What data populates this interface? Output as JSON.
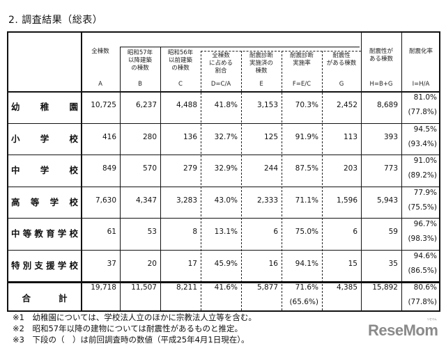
{
  "title": "2. 調査結果（総表）",
  "columns": [
    {
      "key": "A",
      "header": [
        "全棟数"
      ],
      "letter": "A"
    },
    {
      "key": "B",
      "header": [
        "昭和57年",
        "以降建築",
        "の棟数"
      ],
      "letter": "B"
    },
    {
      "key": "C",
      "header": [
        "昭和56年",
        "以前建築",
        "の棟数"
      ],
      "letter": "C"
    },
    {
      "key": "D",
      "header": [
        "全棟数",
        "に占める",
        "割合"
      ],
      "letter": "D=C/A"
    },
    {
      "key": "E",
      "header": [
        "耐震診断",
        "実施済の",
        "棟数"
      ],
      "letter": "E"
    },
    {
      "key": "F",
      "header": [
        "耐震診断",
        "実施率"
      ],
      "letter": "F=E/C"
    },
    {
      "key": "G",
      "header": [
        "耐震性",
        "がある棟数"
      ],
      "letter": "G"
    },
    {
      "key": "H",
      "header": [
        "耐震性が",
        "ある棟数"
      ],
      "letter": "H=B+G"
    },
    {
      "key": "I",
      "header": [
        "耐震化率"
      ],
      "letter": "I=H/A"
    }
  ],
  "rows": [
    {
      "label": [
        "幼",
        "稚",
        "園"
      ],
      "A": "10,725",
      "B": "6,237",
      "C": "4,488",
      "D": "41.8%",
      "E": "3,153",
      "F": "70.3%",
      "G": "2,452",
      "H": "8,689",
      "I": "81.0%",
      "I_prev": "(77.8%)"
    },
    {
      "label": [
        "小",
        "学",
        "校"
      ],
      "A": "416",
      "B": "280",
      "C": "136",
      "D": "32.7%",
      "E": "125",
      "F": "91.9%",
      "G": "113",
      "H": "393",
      "I": "94.5%",
      "I_prev": "(93.4%)"
    },
    {
      "label": [
        "中",
        "学",
        "校"
      ],
      "A": "849",
      "B": "570",
      "C": "279",
      "D": "32.9%",
      "E": "244",
      "F": "87.5%",
      "G": "203",
      "H": "773",
      "I": "91.0%",
      "I_prev": "(89.2%)"
    },
    {
      "label": [
        "高",
        "等",
        "学",
        "校"
      ],
      "A": "7,630",
      "B": "4,347",
      "C": "3,283",
      "D": "43.0%",
      "E": "2,333",
      "F": "71.1%",
      "G": "1,596",
      "H": "5,943",
      "I": "77.9%",
      "I_prev": "(75.5%)"
    },
    {
      "label": [
        "中",
        "等",
        "教",
        "育",
        "学",
        "校"
      ],
      "A": "61",
      "B": "53",
      "C": "8",
      "D": "13.1%",
      "E": "6",
      "F": "75.0%",
      "G": "6",
      "H": "59",
      "I": "96.7%",
      "I_prev": "(98.3%)"
    },
    {
      "label": [
        "特",
        "別",
        "支",
        "援",
        "学",
        "校"
      ],
      "A": "37",
      "B": "20",
      "C": "17",
      "D": "45.9%",
      "E": "16",
      "F": "94.1%",
      "G": "15",
      "H": "35",
      "I": "94.6%",
      "I_prev": "(86.5%)"
    }
  ],
  "total": {
    "label": [
      "合",
      "計"
    ],
    "A": "19,718",
    "B": "11,507",
    "C": "8,211",
    "D": "41.6%",
    "E": "5,877",
    "F": "71.6%",
    "F_prev": "(65.6%)",
    "G": "4,385",
    "H": "15,892",
    "I": "80.6%",
    "I_prev": "(77.8%)"
  },
  "notes": [
    "※1　幼稚園については、学校法人立のほかに宗教法人立等を含む。",
    "※2　昭和57年以降の建物については耐震性があるものと推定。",
    "※3　下段の（　）は前回調査時の数値（平成25年4月1日現在）。"
  ],
  "logo": {
    "text": "ReseMom",
    "kana": "リセマム"
  }
}
